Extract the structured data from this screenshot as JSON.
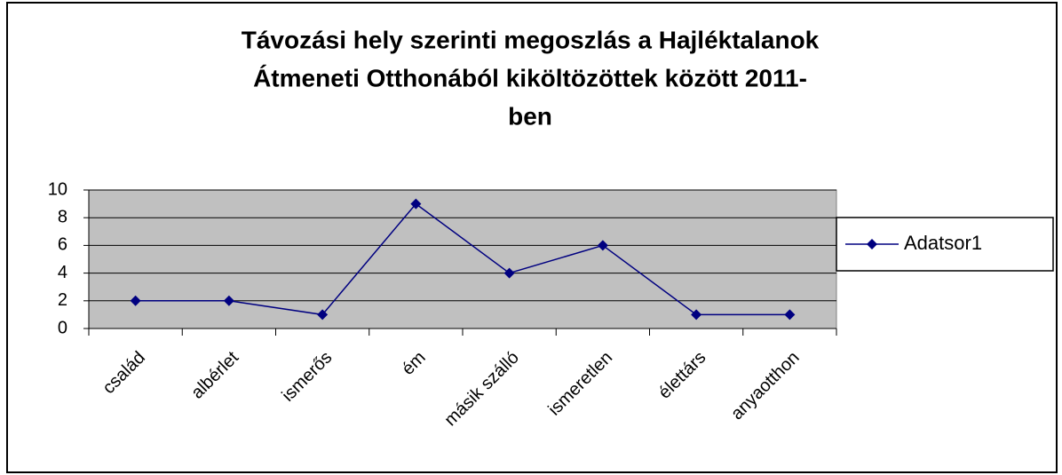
{
  "chart_data": {
    "type": "line",
    "title": [
      "Távozási hely szerinti megoszlás a Hajléktalanok",
      "Átmeneti Otthonából kiköltözöttek között 2011-",
      "ben"
    ],
    "categories": [
      "család",
      "albérlet",
      "ismerős",
      "ém",
      "másik szálló",
      "ismeretlen",
      "élettárs",
      "anyaotthon"
    ],
    "series": [
      {
        "name": "Adatsor1",
        "color": "#000080",
        "values": [
          2,
          2,
          1,
          9,
          4,
          6,
          1,
          1
        ]
      }
    ],
    "ylim": [
      0,
      10
    ],
    "yticks": [
      0,
      2,
      4,
      6,
      8,
      10
    ],
    "grid": true,
    "legend": "right"
  }
}
